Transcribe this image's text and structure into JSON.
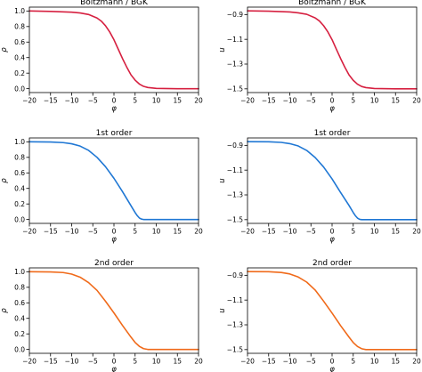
{
  "figure": {
    "panel_count": 6
  },
  "chart_data": [
    {
      "type": "line",
      "title": "Boltzmann / BGK",
      "xlabel": "φ",
      "ylabel": "ρ",
      "xlim": [
        -20,
        20
      ],
      "ylim": [
        -0.05,
        1.05
      ],
      "xticks": [
        -20,
        -15,
        -10,
        -5,
        0,
        5,
        10,
        15,
        20
      ],
      "yticks": [
        0.0,
        0.2,
        0.4,
        0.6,
        0.8,
        1.0
      ],
      "ytick_labels": [
        "0.0",
        "0.2",
        "0.4",
        "0.6",
        "0.8",
        "1.0"
      ],
      "color": "#d62040",
      "grid": false,
      "series": [
        {
          "x": [
            -20,
            -15,
            -10,
            -8,
            -6,
            -4,
            -3,
            -2,
            -1,
            0,
            1,
            2,
            3,
            4,
            5,
            6,
            7,
            8,
            10,
            15,
            20
          ],
          "y": [
            1.0,
            0.995,
            0.985,
            0.975,
            0.955,
            0.91,
            0.87,
            0.81,
            0.73,
            0.63,
            0.51,
            0.39,
            0.28,
            0.18,
            0.11,
            0.06,
            0.03,
            0.015,
            0.004,
            0.0,
            0.0
          ]
        }
      ]
    },
    {
      "type": "line",
      "title": "Boltzmann / BGK",
      "xlabel": "φ",
      "ylabel": "u",
      "xlim": [
        -20,
        20
      ],
      "ylim": [
        -1.53,
        -0.84
      ],
      "xticks": [
        -20,
        -15,
        -10,
        -5,
        0,
        5,
        10,
        15,
        20
      ],
      "yticks": [
        -1.5,
        -1.3,
        -1.1,
        -0.9
      ],
      "ytick_labels": [
        "−1.5",
        "−1.3",
        "−1.1",
        "−0.9"
      ],
      "color": "#d62040",
      "grid": false,
      "series": [
        {
          "x": [
            -20,
            -15,
            -10,
            -8,
            -6,
            -4,
            -3,
            -2,
            -1,
            0,
            1,
            2,
            3,
            4,
            5,
            6,
            7,
            8,
            10,
            15,
            20
          ],
          "y": [
            -0.87,
            -0.873,
            -0.879,
            -0.886,
            -0.898,
            -0.927,
            -0.952,
            -0.99,
            -1.04,
            -1.103,
            -1.179,
            -1.254,
            -1.324,
            -1.387,
            -1.431,
            -1.462,
            -1.481,
            -1.49,
            -1.497,
            -1.5,
            -1.5
          ]
        }
      ]
    },
    {
      "type": "line",
      "title": "1st order",
      "xlabel": "φ",
      "ylabel": "ρ",
      "xlim": [
        -20,
        20
      ],
      "ylim": [
        -0.05,
        1.05
      ],
      "xticks": [
        -20,
        -15,
        -10,
        -5,
        0,
        5,
        10,
        15,
        20
      ],
      "yticks": [
        0.0,
        0.2,
        0.4,
        0.6,
        0.8,
        1.0
      ],
      "ytick_labels": [
        "0.0",
        "0.2",
        "0.4",
        "0.6",
        "0.8",
        "1.0"
      ],
      "color": "#1f77d4",
      "grid": false,
      "series": [
        {
          "x": [
            -20,
            -15,
            -12,
            -10,
            -8,
            -6,
            -4,
            -2,
            0,
            2,
            4,
            5,
            5.5,
            6,
            6.5,
            7,
            8,
            10,
            15,
            20
          ],
          "y": [
            1.0,
            0.998,
            0.99,
            0.975,
            0.945,
            0.89,
            0.8,
            0.68,
            0.53,
            0.36,
            0.18,
            0.09,
            0.05,
            0.02,
            0.005,
            0.0,
            0.0,
            0.0,
            0.0,
            0.0
          ]
        }
      ]
    },
    {
      "type": "line",
      "title": "1st order",
      "xlabel": "φ",
      "ylabel": "u",
      "xlim": [
        -20,
        20
      ],
      "ylim": [
        -1.53,
        -0.84
      ],
      "xticks": [
        -20,
        -15,
        -10,
        -5,
        0,
        5,
        10,
        15,
        20
      ],
      "yticks": [
        -1.5,
        -1.3,
        -1.1,
        -0.9
      ],
      "ytick_labels": [
        "−1.5",
        "−1.3",
        "−1.1",
        "−0.9"
      ],
      "color": "#1f77d4",
      "grid": false,
      "series": [
        {
          "x": [
            -20,
            -15,
            -12,
            -10,
            -8,
            -6,
            -4,
            -2,
            0,
            2,
            4,
            5,
            5.5,
            6,
            6.5,
            7,
            8,
            10,
            15,
            20
          ],
          "y": [
            -0.87,
            -0.871,
            -0.876,
            -0.886,
            -0.905,
            -0.941,
            -0.998,
            -1.075,
            -1.171,
            -1.28,
            -1.385,
            -1.442,
            -1.468,
            -1.487,
            -1.497,
            -1.5,
            -1.5,
            -1.5,
            -1.5,
            -1.5
          ]
        }
      ]
    },
    {
      "type": "line",
      "title": "2nd order",
      "xlabel": "φ",
      "ylabel": "ρ",
      "xlim": [
        -20,
        20
      ],
      "ylim": [
        -0.05,
        1.05
      ],
      "xticks": [
        -20,
        -15,
        -10,
        -5,
        0,
        5,
        10,
        15,
        20
      ],
      "yticks": [
        0.0,
        0.2,
        0.4,
        0.6,
        0.8,
        1.0
      ],
      "ytick_labels": [
        "0.0",
        "0.2",
        "0.4",
        "0.6",
        "0.8",
        "1.0"
      ],
      "color": "#f06a1a",
      "grid": false,
      "series": [
        {
          "x": [
            -20,
            -15,
            -12,
            -10,
            -8,
            -6,
            -4,
            -2,
            0,
            2,
            4,
            5,
            6,
            7,
            8,
            10,
            15,
            20
          ],
          "y": [
            1.0,
            0.998,
            0.99,
            0.97,
            0.93,
            0.86,
            0.76,
            0.62,
            0.47,
            0.31,
            0.16,
            0.09,
            0.04,
            0.01,
            0.0,
            0.0,
            0.0,
            0.0
          ]
        }
      ]
    },
    {
      "type": "line",
      "title": "2nd order",
      "xlabel": "φ",
      "ylabel": "u",
      "xlim": [
        -20,
        20
      ],
      "ylim": [
        -1.53,
        -0.84
      ],
      "xticks": [
        -20,
        -15,
        -10,
        -5,
        0,
        5,
        10,
        15,
        20
      ],
      "yticks": [
        -1.5,
        -1.3,
        -1.1,
        -0.9
      ],
      "ytick_labels": [
        "−1.5",
        "−1.3",
        "−1.1",
        "−0.9"
      ],
      "color": "#f06a1a",
      "grid": false,
      "series": [
        {
          "x": [
            -20,
            -15,
            -12,
            -10,
            -8,
            -6,
            -4,
            -2,
            0,
            2,
            4,
            5,
            6,
            7,
            8,
            10,
            15,
            20
          ],
          "y": [
            -0.87,
            -0.871,
            -0.877,
            -0.889,
            -0.914,
            -0.955,
            -1.019,
            -1.109,
            -1.205,
            -1.306,
            -1.399,
            -1.443,
            -1.475,
            -1.493,
            -1.5,
            -1.5,
            -1.5,
            -1.5
          ]
        }
      ]
    }
  ]
}
